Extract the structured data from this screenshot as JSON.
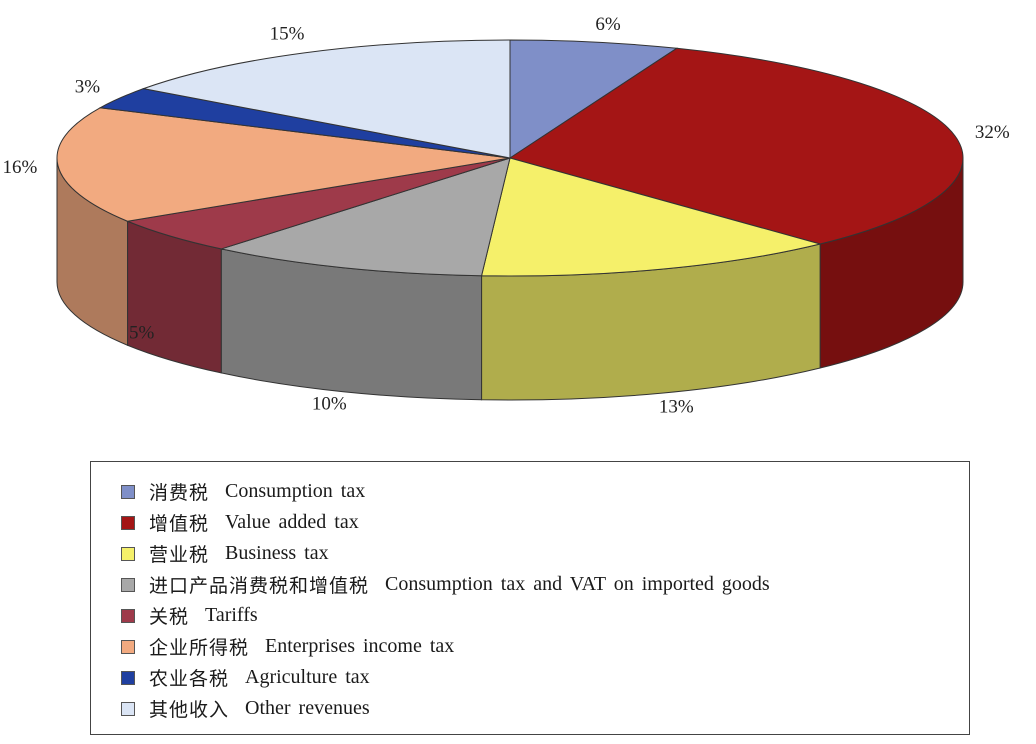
{
  "chart_data": {
    "type": "pie",
    "title": "",
    "legend_position": "bottom",
    "slices": [
      {
        "cn": "消费税",
        "en": "Consumption tax",
        "label": "6%",
        "value": 6,
        "color": "#7f8fc8"
      },
      {
        "cn": "增值税",
        "en": "Value added tax",
        "label": "32%",
        "value": 32,
        "color": "#a41515"
      },
      {
        "cn": "营业税",
        "en": "Business tax",
        "label": "13%",
        "value": 13,
        "color": "#f5f06a"
      },
      {
        "cn": "进口产品消费税和增值税",
        "en": "Consumption tax and VAT on imported goods",
        "label": "10%",
        "value": 10,
        "color": "#a8a8a8"
      },
      {
        "cn": "关税",
        "en": "Tariffs",
        "label": "5%",
        "value": 5,
        "color": "#9e3a4a"
      },
      {
        "cn": "企业所得税",
        "en": "Enterprises income tax",
        "label": "16%",
        "value": 16,
        "color": "#f2aa80"
      },
      {
        "cn": "农业各税",
        "en": "Agriculture tax",
        "label": "3%",
        "value": 3,
        "color": "#1f3fa0"
      },
      {
        "cn": "其他收入",
        "en": "Other revenues",
        "label": "15%",
        "value": 15,
        "color": "#dbe5f5"
      }
    ]
  }
}
